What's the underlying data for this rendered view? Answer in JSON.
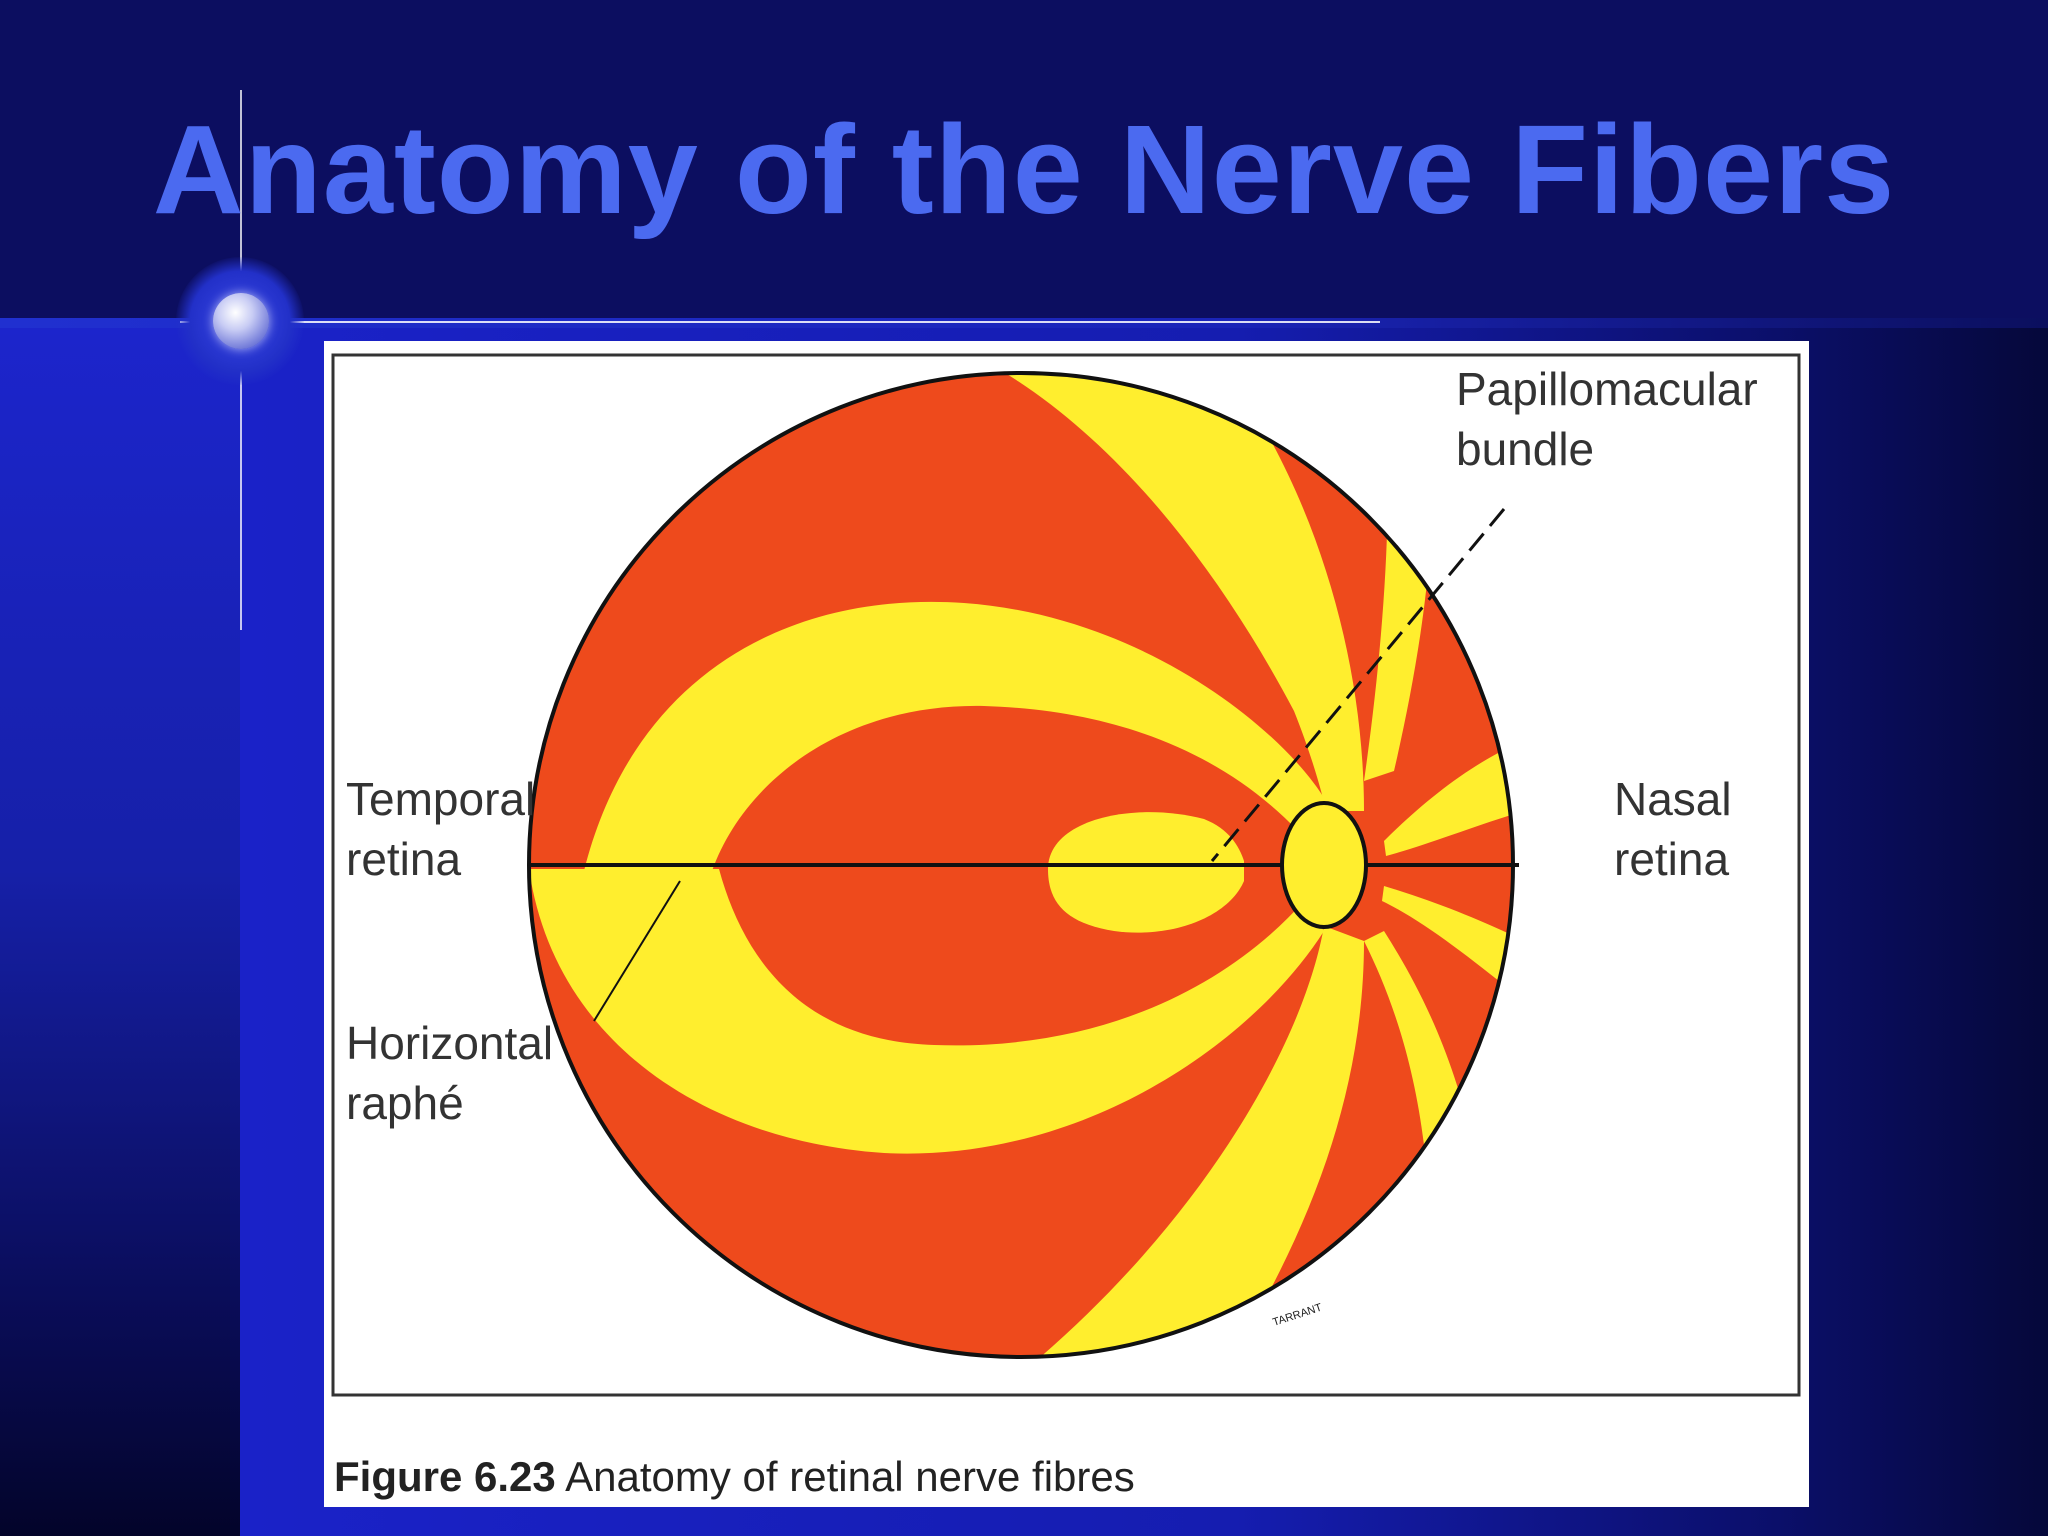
{
  "slide": {
    "title": "Anatomy of the Nerve Fibers"
  },
  "figure": {
    "labels": {
      "papillomacular_1": "Papillomacular",
      "papillomacular_2": "bundle",
      "temporal_1": "Temporal",
      "temporal_2": "retina",
      "nasal_1": "Nasal",
      "nasal_2": "retina",
      "horizontal_1": "Horizontal",
      "horizontal_2": "raphé"
    },
    "caption_number": "Figure 6.23",
    "caption_text": "Anatomy of retinal nerve fibres",
    "signature": "TARRANT"
  },
  "colors": {
    "fiber_orange": "#ee4a1c",
    "fiber_yellow": "#ffee2e",
    "title": "#4b6af0"
  }
}
